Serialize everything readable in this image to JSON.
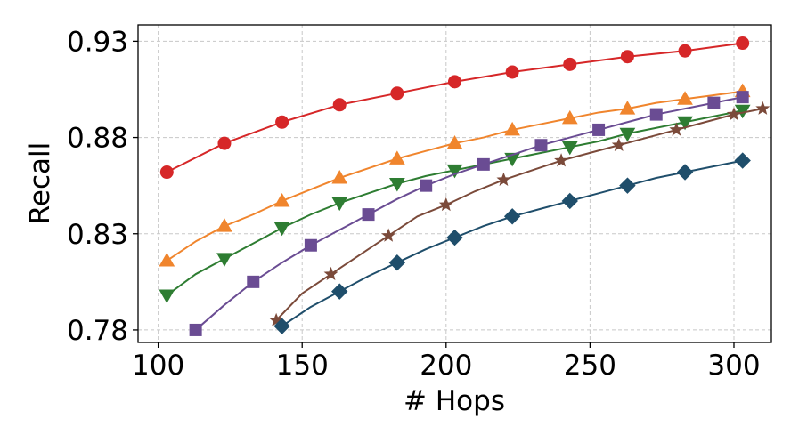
{
  "chart_data": {
    "type": "line",
    "xlabel": "# Hops",
    "ylabel": "Recall",
    "xlim": [
      93,
      313
    ],
    "ylim": [
      0.7735,
      0.9385
    ],
    "xticks": [
      100,
      150,
      200,
      250,
      300
    ],
    "xtick_labels": [
      "100",
      "150",
      "200",
      "250",
      "300"
    ],
    "yticks": [
      0.78,
      0.83,
      0.88,
      0.93
    ],
    "ytick_labels": [
      "0.78",
      "0.83",
      "0.88",
      "0.93"
    ],
    "grid": true,
    "series": [
      {
        "color": "#d62728",
        "marker": "circle",
        "x": [
          103,
          123,
          143,
          163,
          183,
          203,
          223,
          243,
          263,
          283,
          303
        ],
        "y": [
          0.862,
          0.877,
          0.888,
          0.897,
          0.903,
          0.909,
          0.914,
          0.918,
          0.922,
          0.925,
          0.929
        ],
        "marker_x": [
          103,
          123,
          143,
          163,
          183,
          203,
          223,
          243,
          263,
          283,
          303
        ],
        "marker_y": [
          0.862,
          0.877,
          0.888,
          0.897,
          0.903,
          0.909,
          0.914,
          0.918,
          0.922,
          0.925,
          0.929
        ]
      },
      {
        "color": "#f0852d",
        "marker": "triangle-up",
        "x": [
          103,
          113,
          123,
          133,
          143,
          153,
          163,
          173,
          183,
          193,
          203,
          213,
          223,
          233,
          243,
          253,
          263,
          273,
          283,
          293,
          303
        ],
        "y": [
          0.816,
          0.826,
          0.834,
          0.84,
          0.847,
          0.853,
          0.859,
          0.864,
          0.869,
          0.873,
          0.877,
          0.88,
          0.884,
          0.887,
          0.89,
          0.893,
          0.895,
          0.898,
          0.9,
          0.902,
          0.904
        ],
        "marker_x": [
          103,
          123,
          143,
          163,
          183,
          203,
          223,
          243,
          263,
          283,
          303
        ],
        "marker_y": [
          0.816,
          0.834,
          0.847,
          0.859,
          0.869,
          0.877,
          0.884,
          0.89,
          0.895,
          0.9,
          0.904
        ]
      },
      {
        "color": "#2e7d32",
        "marker": "triangle-down",
        "x": [
          103,
          113,
          123,
          133,
          143,
          153,
          163,
          173,
          183,
          193,
          203,
          213,
          223,
          233,
          243,
          253,
          263,
          273,
          283,
          293,
          303
        ],
        "y": [
          0.798,
          0.809,
          0.817,
          0.825,
          0.833,
          0.84,
          0.846,
          0.851,
          0.856,
          0.86,
          0.863,
          0.866,
          0.869,
          0.872,
          0.875,
          0.878,
          0.882,
          0.885,
          0.888,
          0.891,
          0.894
        ],
        "marker_x": [
          103,
          123,
          143,
          163,
          183,
          203,
          223,
          243,
          263,
          283,
          303
        ],
        "marker_y": [
          0.798,
          0.817,
          0.833,
          0.846,
          0.856,
          0.863,
          0.869,
          0.875,
          0.882,
          0.888,
          0.894
        ]
      },
      {
        "color": "#6a4c93",
        "marker": "square",
        "x": [
          113,
          123,
          133,
          143,
          153,
          163,
          173,
          183,
          193,
          203,
          213,
          223,
          233,
          243,
          253,
          263,
          273,
          283,
          293,
          303
        ],
        "y": [
          0.78,
          0.793,
          0.805,
          0.815,
          0.824,
          0.832,
          0.84,
          0.848,
          0.855,
          0.861,
          0.866,
          0.871,
          0.876,
          0.88,
          0.884,
          0.888,
          0.892,
          0.895,
          0.898,
          0.901
        ],
        "marker_x": [
          113,
          133,
          153,
          173,
          193,
          213,
          233,
          253,
          273,
          293,
          303
        ],
        "marker_y": [
          0.78,
          0.805,
          0.824,
          0.84,
          0.855,
          0.866,
          0.876,
          0.884,
          0.892,
          0.898,
          0.901
        ]
      },
      {
        "color": "#7b4a3a",
        "marker": "star",
        "x": [
          141,
          150,
          160,
          170,
          180,
          190,
          200,
          210,
          220,
          230,
          240,
          250,
          260,
          270,
          280,
          290,
          300,
          310
        ],
        "y": [
          0.785,
          0.799,
          0.809,
          0.819,
          0.829,
          0.839,
          0.845,
          0.852,
          0.858,
          0.863,
          0.868,
          0.872,
          0.876,
          0.88,
          0.884,
          0.888,
          0.892,
          0.895
        ],
        "marker_x": [
          141,
          160,
          180,
          200,
          220,
          240,
          260,
          280,
          300,
          310
        ],
        "marker_y": [
          0.785,
          0.809,
          0.829,
          0.845,
          0.858,
          0.868,
          0.876,
          0.884,
          0.892,
          0.895
        ]
      },
      {
        "color": "#1f4e6b",
        "marker": "diamond",
        "x": [
          143,
          153,
          163,
          173,
          183,
          193,
          203,
          213,
          223,
          233,
          243,
          253,
          263,
          273,
          283,
          293,
          303
        ],
        "y": [
          0.782,
          0.792,
          0.8,
          0.808,
          0.815,
          0.822,
          0.828,
          0.834,
          0.839,
          0.843,
          0.847,
          0.851,
          0.855,
          0.859,
          0.862,
          0.865,
          0.868
        ],
        "marker_x": [
          143,
          163,
          183,
          203,
          223,
          243,
          263,
          283,
          303
        ],
        "marker_y": [
          0.782,
          0.8,
          0.815,
          0.828,
          0.839,
          0.847,
          0.855,
          0.862,
          0.868
        ]
      }
    ]
  }
}
